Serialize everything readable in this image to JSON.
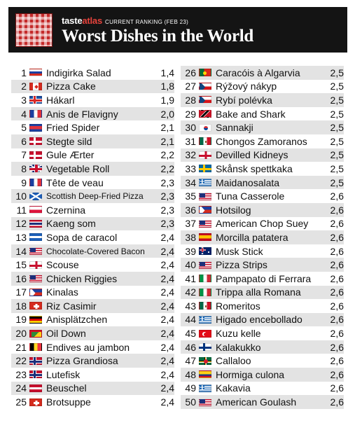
{
  "header": {
    "brand_prefix": "taste",
    "brand_accent": "atlas",
    "ranking_note": "CURRENT RANKING (FEB 23)",
    "title": "Worst Dishes in the World",
    "logo": "checkered-tablecloth-icon",
    "background_color": "#141414",
    "accent_color": "#e6433c"
  },
  "dishes": [
    {
      "rank": "1",
      "name": "Indigirka Salad",
      "score": "1,4",
      "flag": "RU"
    },
    {
      "rank": "2",
      "name": "Pizza Cake",
      "score": "1,8",
      "flag": "CA"
    },
    {
      "rank": "3",
      "name": "Hákarl",
      "score": "1,9",
      "flag": "IS"
    },
    {
      "rank": "4",
      "name": "Anis de Flavigny",
      "score": "2,0",
      "flag": "FR"
    },
    {
      "rank": "5",
      "name": "Fried Spider",
      "score": "2,1",
      "flag": "KH"
    },
    {
      "rank": "6",
      "name": "Stegte sild",
      "score": "2,1",
      "flag": "DK"
    },
    {
      "rank": "7",
      "name": "Gule Ærter",
      "score": "2,2",
      "flag": "DK"
    },
    {
      "rank": "8",
      "name": "Vegetable Roll",
      "score": "2,2",
      "flag": "GB"
    },
    {
      "rank": "9",
      "name": "Tête de veau",
      "score": "2,3",
      "flag": "FR"
    },
    {
      "rank": "10",
      "name": "Scottish Deep-Fried Pizza",
      "score": "2,3",
      "flag": "SCO",
      "small": true
    },
    {
      "rank": "11",
      "name": "Czernina",
      "score": "2,3",
      "flag": "PL"
    },
    {
      "rank": "12",
      "name": "Kaeng som",
      "score": "2,3",
      "flag": "TH"
    },
    {
      "rank": "13",
      "name": "Sopa de caracol",
      "score": "2,4",
      "flag": "HN"
    },
    {
      "rank": "14",
      "name": "Chocolate-Covered Bacon",
      "score": "2,4",
      "flag": "US",
      "small": true
    },
    {
      "rank": "15",
      "name": "Scouse",
      "score": "2,4",
      "flag": "EN"
    },
    {
      "rank": "16",
      "name": "Chicken Riggies",
      "score": "2,4",
      "flag": "US"
    },
    {
      "rank": "17",
      "name": "Kinalas",
      "score": "2,4",
      "flag": "PH"
    },
    {
      "rank": "18",
      "name": "Riz Casimir",
      "score": "2,4",
      "flag": "CH"
    },
    {
      "rank": "19",
      "name": "Anisplätzchen",
      "score": "2,4",
      "flag": "DE"
    },
    {
      "rank": "20",
      "name": "Oil Down",
      "score": "2,4",
      "flag": "GD"
    },
    {
      "rank": "21",
      "name": "Endives au jambon",
      "score": "2,4",
      "flag": "BE"
    },
    {
      "rank": "22",
      "name": "Pizza Grandiosa",
      "score": "2,4",
      "flag": "NO"
    },
    {
      "rank": "23",
      "name": "Lutefisk",
      "score": "2,4",
      "flag": "NO"
    },
    {
      "rank": "24",
      "name": "Beuschel",
      "score": "2,4",
      "flag": "AT"
    },
    {
      "rank": "25",
      "name": "Brotsuppe",
      "score": "2,4",
      "flag": "CH"
    },
    {
      "rank": "26",
      "name": "Caracóis à Algarvia",
      "score": "2,5",
      "flag": "PT"
    },
    {
      "rank": "27",
      "name": "Rýžový nákyp",
      "score": "2,5",
      "flag": "CZ"
    },
    {
      "rank": "28",
      "name": "Rybí polévka",
      "score": "2,5",
      "flag": "CZ"
    },
    {
      "rank": "29",
      "name": "Bake and Shark",
      "score": "2,5",
      "flag": "TT"
    },
    {
      "rank": "30",
      "name": "Sannakji",
      "score": "2,5",
      "flag": "KR"
    },
    {
      "rank": "31",
      "name": "Chongos Zamoranos",
      "score": "2,5",
      "flag": "MX"
    },
    {
      "rank": "32",
      "name": "Devilled Kidneys",
      "score": "2,5",
      "flag": "EN"
    },
    {
      "rank": "33",
      "name": "Skånsk spettkaka",
      "score": "2,5",
      "flag": "SE"
    },
    {
      "rank": "34",
      "name": "Maidanosalata",
      "score": "2,5",
      "flag": "GR"
    },
    {
      "rank": "35",
      "name": "Tuna Casserole",
      "score": "2,6",
      "flag": "US"
    },
    {
      "rank": "36",
      "name": "Hotsilog",
      "score": "2,6",
      "flag": "PH"
    },
    {
      "rank": "37",
      "name": "American Chop Suey",
      "score": "2,6",
      "flag": "US"
    },
    {
      "rank": "38",
      "name": "Morcilla patatera",
      "score": "2,6",
      "flag": "ES"
    },
    {
      "rank": "39",
      "name": "Musk Stick",
      "score": "2,6",
      "flag": "AU"
    },
    {
      "rank": "40",
      "name": "Pizza Strips",
      "score": "2,6",
      "flag": "US"
    },
    {
      "rank": "41",
      "name": "Pampapato di Ferrara",
      "score": "2,6",
      "flag": "IT"
    },
    {
      "rank": "42",
      "name": "Trippa alla Romana",
      "score": "2,6",
      "flag": "IT"
    },
    {
      "rank": "43",
      "name": "Romeritos",
      "score": "2,6",
      "flag": "MX"
    },
    {
      "rank": "44",
      "name": "Higado encebollado",
      "score": "2,6",
      "flag": "GR"
    },
    {
      "rank": "45",
      "name": "Kuzu kelle",
      "score": "2,6",
      "flag": "TR"
    },
    {
      "rank": "46",
      "name": "Kalakukko",
      "score": "2,6",
      "flag": "FI"
    },
    {
      "rank": "47",
      "name": "Callaloo",
      "score": "2,6",
      "flag": "DM"
    },
    {
      "rank": "48",
      "name": "Hormiga culona",
      "score": "2,6",
      "flag": "CO"
    },
    {
      "rank": "49",
      "name": "Kakavia",
      "score": "2,6",
      "flag": "GR"
    },
    {
      "rank": "50",
      "name": "American Goulash",
      "score": "2,6",
      "flag": "US"
    }
  ],
  "colors": {
    "row_shade": "#e3e3e3"
  }
}
